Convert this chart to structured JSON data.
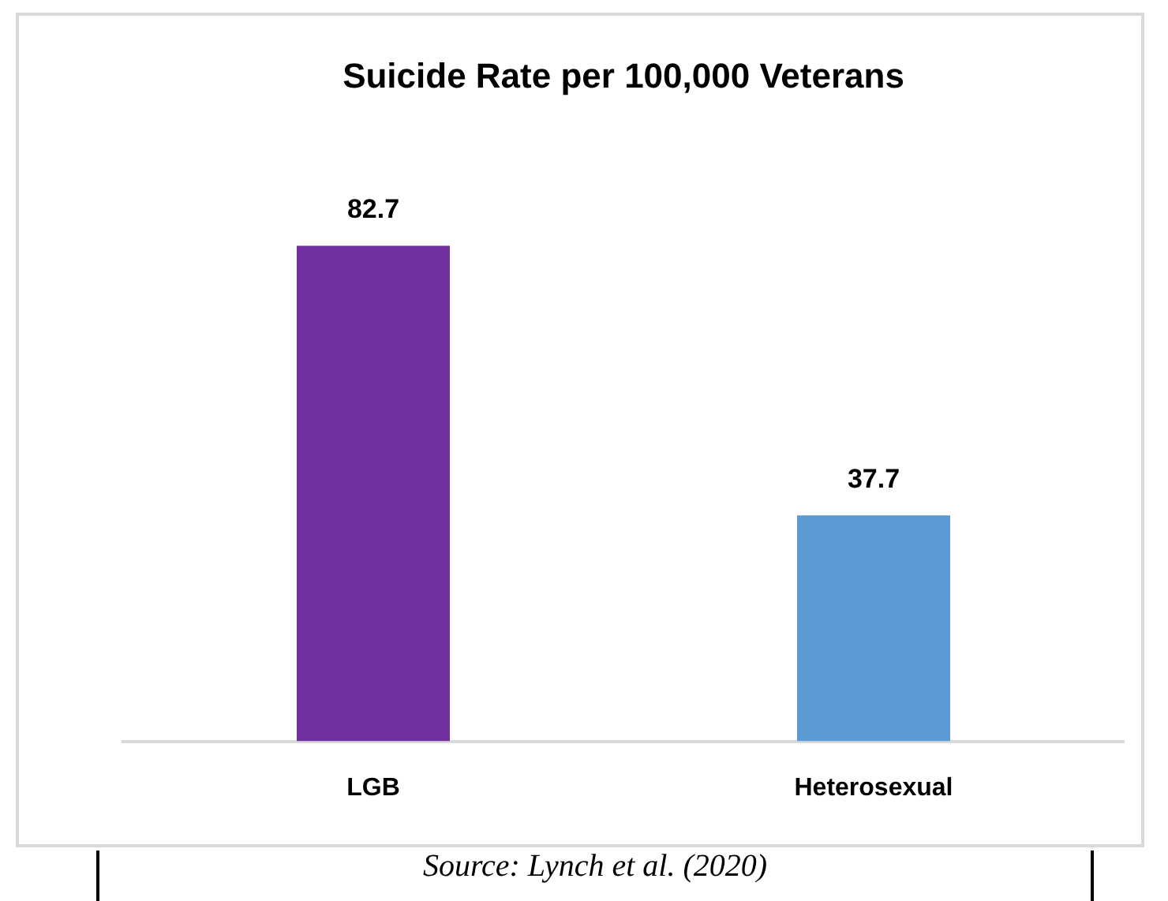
{
  "chart_data": {
    "type": "bar",
    "title": "Suicide Rate per 100,000 Veterans",
    "categories": [
      "LGB",
      "Heterosexual"
    ],
    "values": [
      82.7,
      37.7
    ],
    "colors": [
      "#7030a0",
      "#5b9bd5"
    ],
    "data_labels": true,
    "grid": false,
    "legend": false,
    "annotations": [
      "Source: Lynch et al. (2020)"
    ]
  }
}
